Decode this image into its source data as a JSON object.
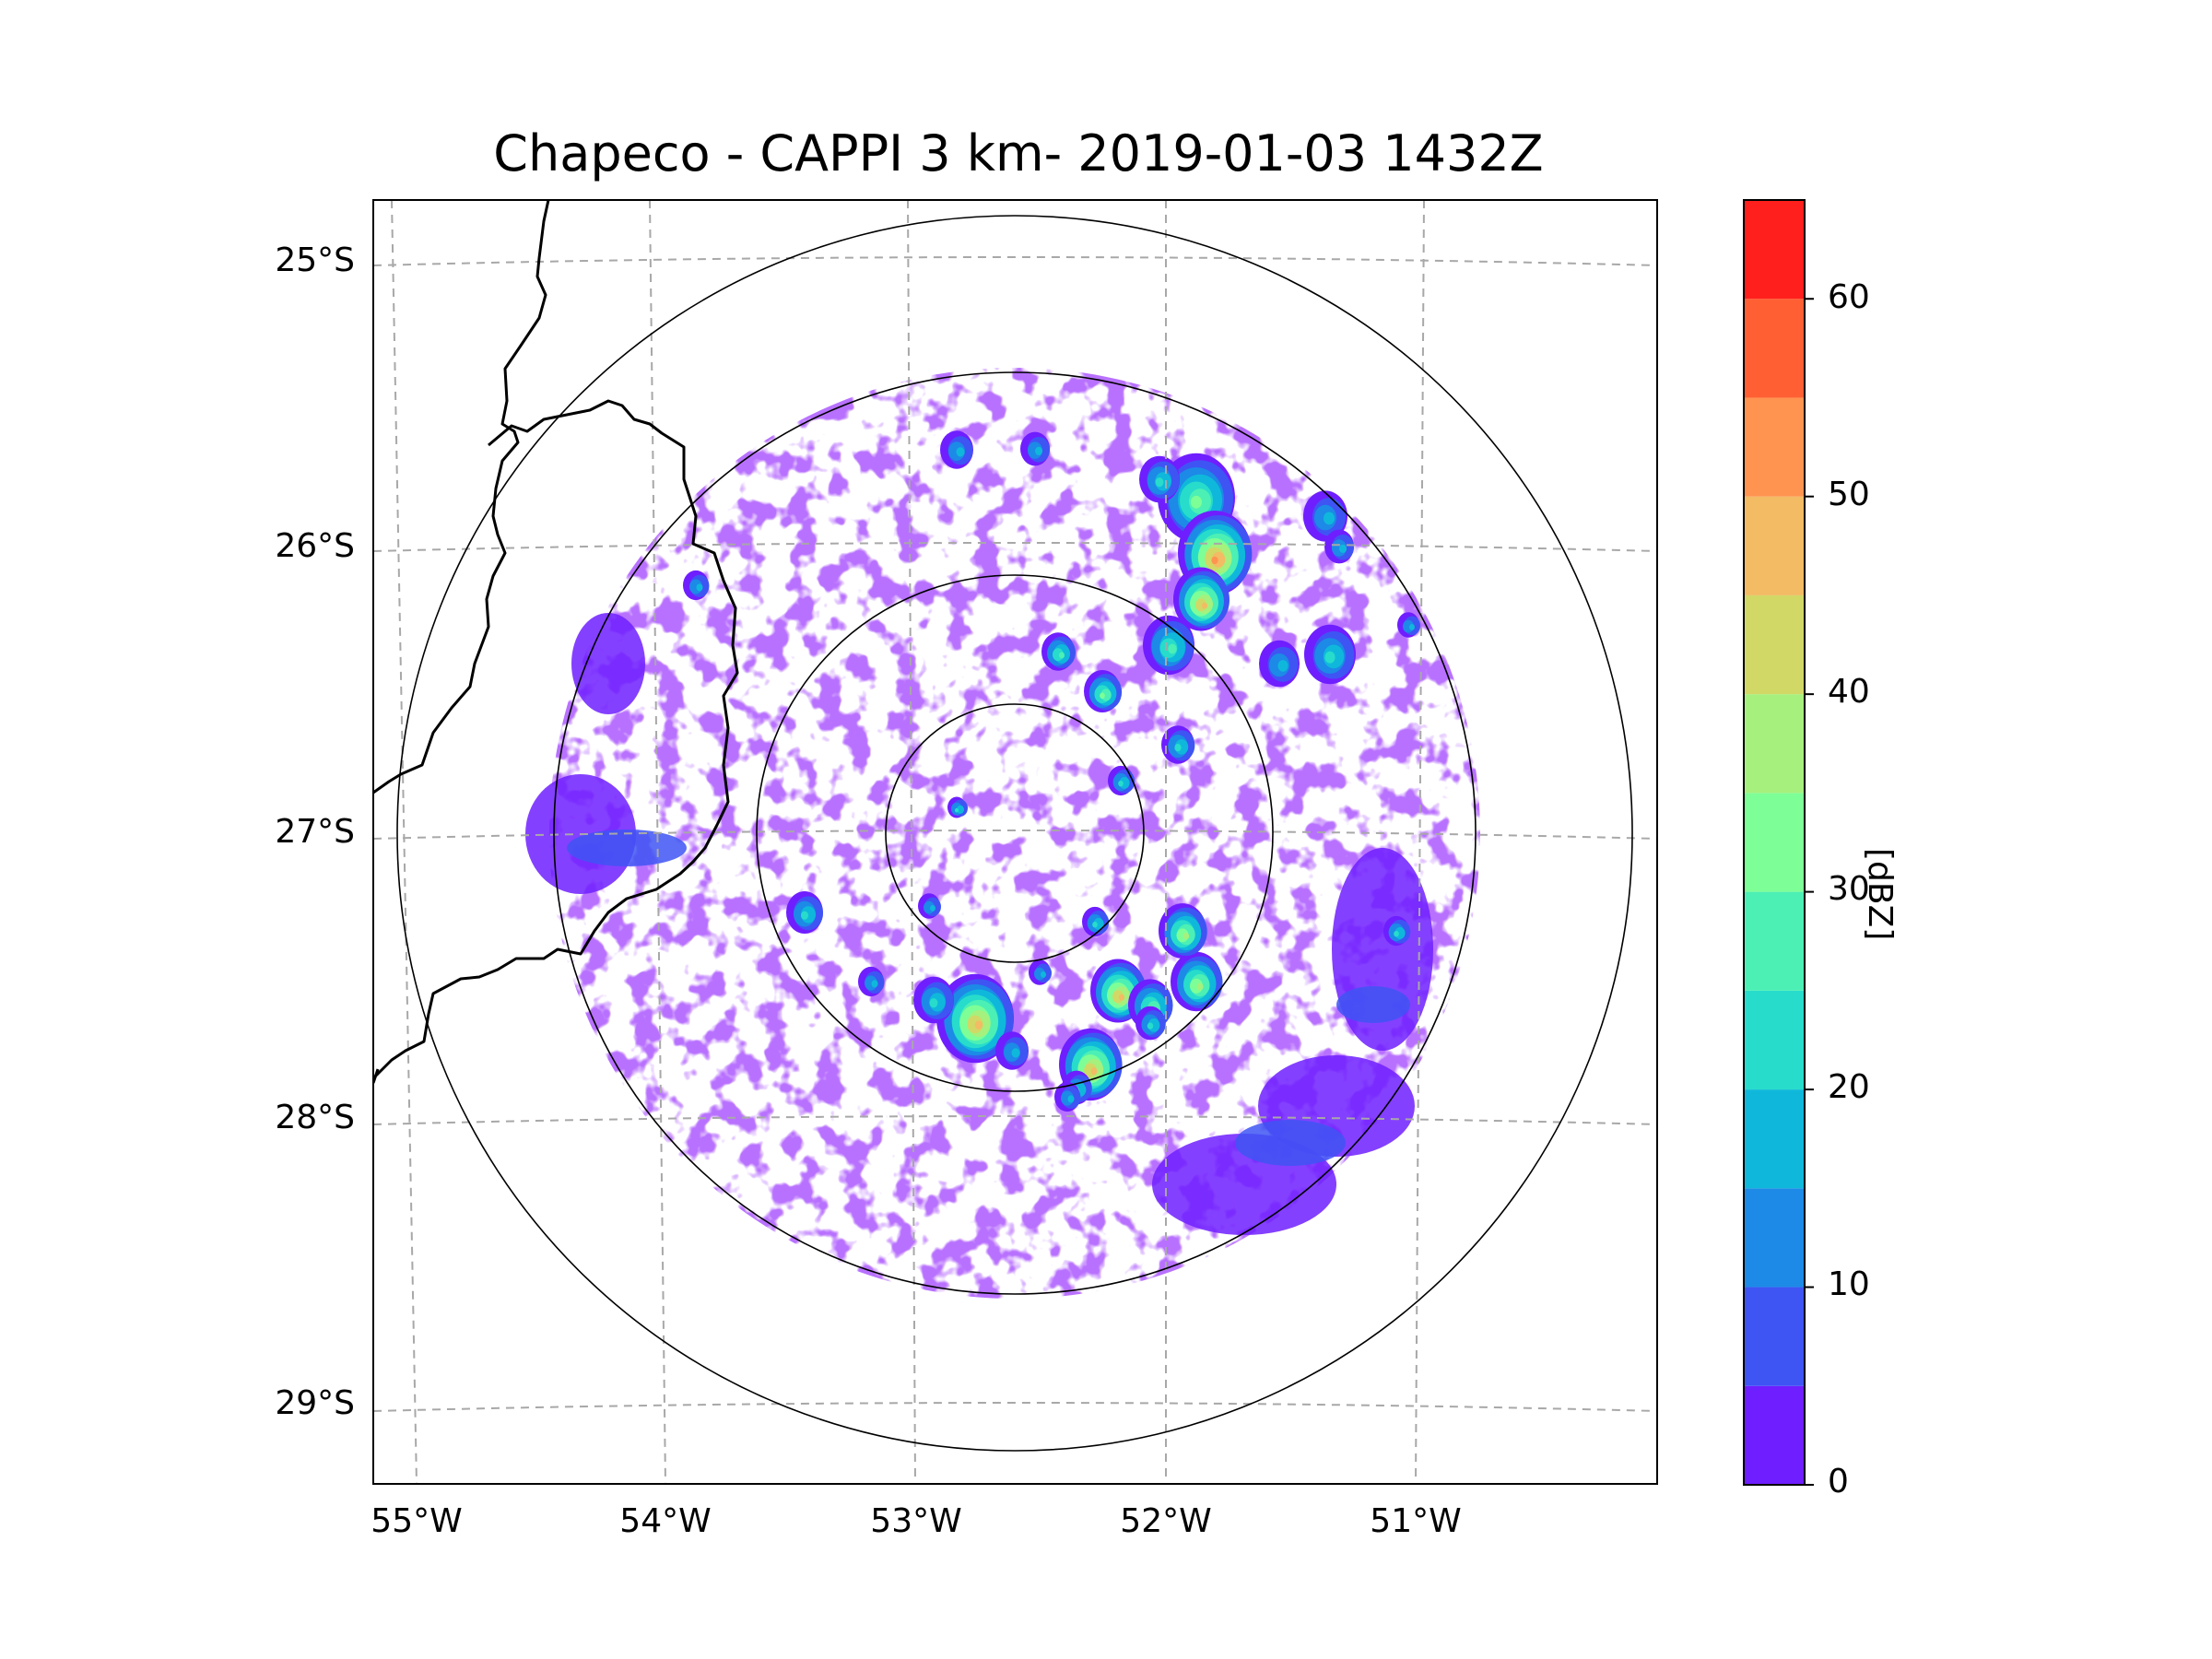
{
  "title": "Chapeco - CAPPI 3 km- 2019-01-03 1432Z",
  "map": {
    "lat_ticks": [
      "25°S",
      "26°S",
      "27°S",
      "28°S",
      "29°S"
    ],
    "lon_ticks": [
      "55°W",
      "54°W",
      "53°W",
      "52°W",
      "51°W"
    ],
    "range_rings_count": 4,
    "gridlines": "dashed gray"
  },
  "colorbar": {
    "label": "[dBZ]",
    "ticks": [
      "0",
      "10",
      "20",
      "30",
      "40",
      "50",
      "60"
    ],
    "levels": [
      0,
      5,
      10,
      15,
      20,
      25,
      30,
      35,
      40,
      45,
      50,
      55,
      60,
      65
    ],
    "colors": [
      "#6f1eff",
      "#3e55f3",
      "#1c8ae6",
      "#0fb8db",
      "#28dccb",
      "#4cf0b4",
      "#7efe97",
      "#a6f07d",
      "#d2d866",
      "#f2bb64",
      "#ff9450",
      "#ff5f33",
      "#ff1f1c"
    ]
  },
  "chart_data": {
    "type": "heatmap",
    "title": "Chapeco - CAPPI 3 km- 2019-01-03 1432Z",
    "colorbar_label": "[dBZ]",
    "value_range": [
      0,
      65
    ],
    "lat_range": [
      "29°S",
      "25°S"
    ],
    "lon_range": [
      "55°W",
      "51°W"
    ]
  }
}
